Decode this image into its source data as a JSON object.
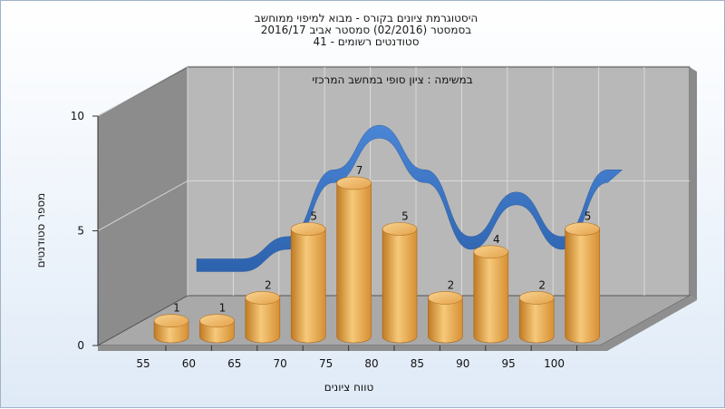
{
  "chart_data": {
    "type": "bar",
    "title": [
      "היסטוגרמת ציונים בקורס - מבוא למיפוי ממוחשב",
      "בסמסטר  (02/2016)  סמסטר אביב 2016/17",
      "סטודנטים רשומים - 41"
    ],
    "subtitle": "במשימה : ציון סופי במחשב המרכזי",
    "xlabel": "טווח ציונים",
    "ylabel": "מספר סטודנטים",
    "categories": [
      "55",
      "60",
      "65",
      "70",
      "75",
      "80",
      "85",
      "90",
      "95",
      "100"
    ],
    "values": [
      1,
      1,
      2,
      5,
      7,
      5,
      2,
      4,
      2,
      5
    ],
    "ylim": [
      0,
      10
    ],
    "yticks": [
      "0",
      "5",
      "10"
    ],
    "grid": true,
    "legend": "none",
    "colors": {
      "bar_light": "#f6c97a",
      "bar_mid": "#e8a445",
      "bar_dark": "#c07a22",
      "bar_top": "#f3b760",
      "ribbon": "#3a74c4",
      "back_wall": "#b8b8b8",
      "side_wall": "#8c8c8c",
      "floor": "#a9a9a9"
    }
  }
}
